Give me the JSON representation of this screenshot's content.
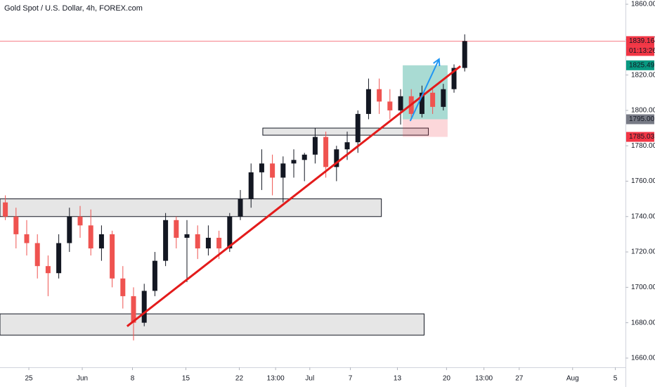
{
  "chart_data": {
    "type": "candlestick",
    "title": "Gold Spot / U.S. Dollar, 4h, FOREX.com",
    "up_color": "#131722",
    "down_color": "#ef5350",
    "x": [
      0.5,
      1.5,
      2.5,
      3.5,
      4.5,
      5.5,
      6.5,
      7.5,
      8.5,
      9.5,
      10.5,
      11.5,
      12.5,
      13.5,
      14.5,
      15.5,
      16.5,
      17.5,
      18.5,
      19.5,
      20.5,
      21.5,
      22.5,
      23.5,
      24.5,
      25.5,
      26.5,
      27.5,
      28.5,
      29.5,
      30.5,
      31.5,
      32.5,
      33.5,
      34.5,
      35.5,
      36.5,
      37.5,
      38.5,
      39.5,
      40.5,
      41.5,
      42.5,
      43.5
    ],
    "open": [
      1748,
      1740,
      1730,
      1725,
      1712,
      1708,
      1725,
      1740,
      1735,
      1722,
      1730,
      1705,
      1695,
      1680,
      1698,
      1715,
      1738,
      1728,
      1730,
      1722,
      1728,
      1722,
      1740,
      1750,
      1765,
      1770,
      1762,
      1770,
      1772,
      1775,
      1785,
      1768,
      1778,
      1782,
      1798,
      1812,
      1805,
      1800,
      1808,
      1798,
      1810,
      1802,
      1812,
      1824
    ],
    "high": [
      1752,
      1745,
      1738,
      1730,
      1718,
      1730,
      1745,
      1746,
      1744,
      1735,
      1732,
      1712,
      1700,
      1702,
      1720,
      1742,
      1740,
      1738,
      1735,
      1735,
      1732,
      1742,
      1755,
      1770,
      1778,
      1775,
      1774,
      1778,
      1776,
      1790,
      1788,
      1780,
      1788,
      1800,
      1818,
      1818,
      1812,
      1812,
      1812,
      1814,
      1812,
      1815,
      1826,
      1843
    ],
    "low": [
      1738,
      1722,
      1718,
      1705,
      1695,
      1705,
      1720,
      1728,
      1718,
      1715,
      1700,
      1688,
      1670,
      1678,
      1695,
      1712,
      1722,
      1703,
      1716,
      1718,
      1716,
      1720,
      1738,
      1745,
      1755,
      1752,
      1748,
      1762,
      1760,
      1770,
      1762,
      1760,
      1772,
      1776,
      1795,
      1798,
      1795,
      1792,
      1795,
      1796,
      1798,
      1800,
      1810,
      1822
    ],
    "close": [
      1740,
      1730,
      1725,
      1712,
      1708,
      1725,
      1740,
      1735,
      1722,
      1730,
      1705,
      1695,
      1680,
      1698,
      1715,
      1738,
      1728,
      1730,
      1722,
      1728,
      1722,
      1740,
      1750,
      1765,
      1770,
      1762,
      1770,
      1772,
      1775,
      1785,
      1768,
      1778,
      1782,
      1798,
      1812,
      1805,
      1800,
      1808,
      1798,
      1810,
      1802,
      1812,
      1824,
      1839.16
    ],
    "xlim": [
      0,
      58.55
    ],
    "xticks": [
      {
        "value": 2.7,
        "label": "25"
      },
      {
        "value": 7.7,
        "label": "Jun"
      },
      {
        "value": 12.4,
        "label": "8"
      },
      {
        "value": 17.4,
        "label": "15"
      },
      {
        "value": 22.4,
        "label": "22"
      },
      {
        "value": 25.8,
        "label": "13:00"
      },
      {
        "value": 29.0,
        "label": "Jul"
      },
      {
        "value": 32.8,
        "label": "7"
      },
      {
        "value": 37.2,
        "label": "13"
      },
      {
        "value": 41.8,
        "label": "20"
      },
      {
        "value": 45.3,
        "label": "13:00"
      },
      {
        "value": 48.6,
        "label": "27"
      },
      {
        "value": 53.6,
        "label": "Aug"
      },
      {
        "value": 57.6,
        "label": "5"
      }
    ],
    "ylim": [
      1654.8,
      1862.4
    ],
    "yticks": [
      {
        "value": 1660,
        "label": "1660.00"
      },
      {
        "value": 1680,
        "label": "1680.00"
      },
      {
        "value": 1700,
        "label": "1700.00"
      },
      {
        "value": 1720,
        "label": "1720.00"
      },
      {
        "value": 1740,
        "label": "1740.00"
      },
      {
        "value": 1760,
        "label": "1760.00"
      },
      {
        "value": 1780,
        "label": "1780.00"
      },
      {
        "value": 1800,
        "label": "1800.00"
      },
      {
        "value": 1820,
        "label": "1820.00"
      },
      {
        "value": 1840,
        "label": "1840.00"
      },
      {
        "value": 1860,
        "label": "1860.00"
      }
    ],
    "last_price": 1839.16,
    "countdown": "01:13:26",
    "zones": [
      {
        "x": [
          0,
          35.7
        ],
        "y": [
          1740,
          1750
        ]
      },
      {
        "x": [
          0,
          39.7
        ],
        "y": [
          1673,
          1685
        ]
      },
      {
        "x": [
          24.6,
          40.1
        ],
        "y": [
          1786,
          1790
        ]
      }
    ],
    "trend_line": {
      "x": [
        11.9,
        43.1
      ],
      "y": [
        1678,
        1825
      ]
    },
    "arrow": {
      "x": [
        38.4,
        41.1
      ],
      "y": [
        1794,
        1829
      ]
    },
    "position": {
      "x": [
        37.7,
        41.9
      ],
      "target": 1825.49,
      "entry": {
        "value": 1795,
        "label": "1795.00"
      },
      "stop": 1785.03
    }
  }
}
